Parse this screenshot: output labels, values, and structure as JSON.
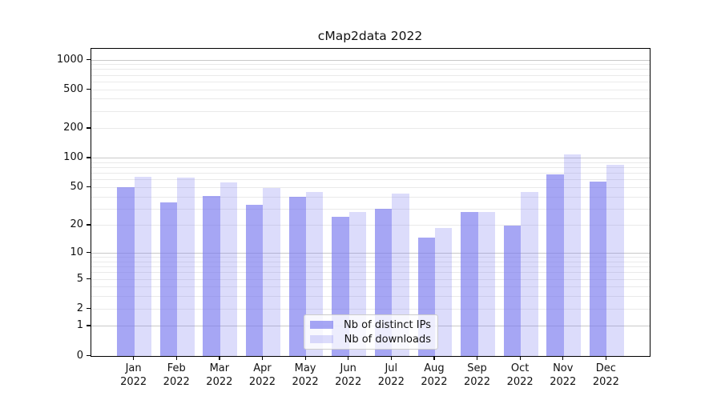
{
  "chart_data": {
    "type": "bar",
    "title": "cMap2data 2022",
    "categories": [
      "Jan",
      "Feb",
      "Mar",
      "Apr",
      "May",
      "Jun",
      "Jul",
      "Aug",
      "Sep",
      "Oct",
      "Nov",
      "Dec"
    ],
    "year_label": "2022",
    "series": [
      {
        "name": "Nb of distinct IPs",
        "values": [
          50,
          35,
          41,
          33,
          40,
          25,
          30,
          15,
          28,
          20,
          68,
          58
        ],
        "color": "rgba(119,119,238,0.65)"
      },
      {
        "name": "Nb of downloads",
        "values": [
          65,
          63,
          57,
          49,
          45,
          28,
          43,
          19,
          28,
          45,
          110,
          85
        ],
        "color": "rgba(119,119,238,0.26)"
      }
    ],
    "yscale": "log10(value+1)",
    "ylim": [
      0,
      1000
    ],
    "ytick_values": [
      0,
      1,
      2,
      5,
      10,
      20,
      50,
      100,
      200,
      500,
      1000
    ],
    "ytick_labels": [
      "0",
      "1",
      "2",
      "5",
      "10",
      "20",
      "50",
      "100",
      "200",
      "500",
      "1000"
    ],
    "grid": {
      "major_values": [
        1,
        10,
        100,
        1000
      ],
      "minor_values": [
        2,
        3,
        4,
        5,
        6,
        7,
        8,
        9,
        20,
        30,
        40,
        50,
        60,
        70,
        80,
        90,
        200,
        300,
        400,
        500,
        600,
        700,
        800,
        900
      ],
      "major_color": "#c9c9c9",
      "minor_color": "#eaeaea"
    },
    "legend_position": "lower center",
    "xlabel": "",
    "ylabel": ""
  }
}
